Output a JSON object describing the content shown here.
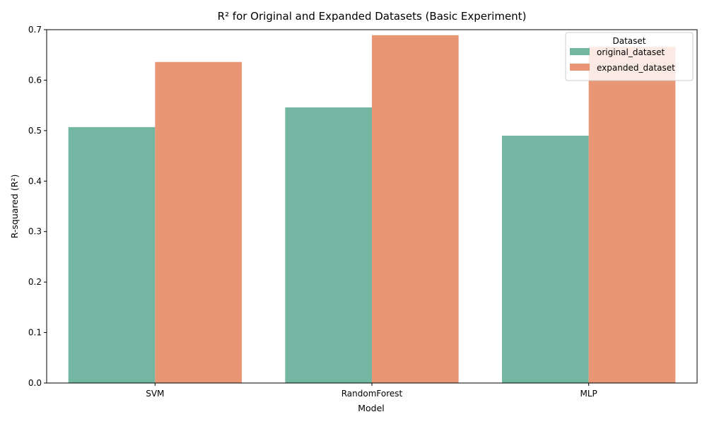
{
  "chart_data": {
    "type": "bar",
    "title": "R² for Original and Expanded Datasets (Basic Experiment)",
    "xlabel": "Model",
    "ylabel": "R-squared (R²)",
    "categories": [
      "SVM",
      "RandomForest",
      "MLP"
    ],
    "series": [
      {
        "name": "original_dataset",
        "values": [
          0.507,
          0.546,
          0.49
        ],
        "color": "#73b6a1"
      },
      {
        "name": "expanded_dataset",
        "values": [
          0.636,
          0.689,
          0.666
        ],
        "color": "#e99675"
      }
    ],
    "ylim": [
      0,
      0.7
    ],
    "yticks": [
      "0.0",
      "0.1",
      "0.2",
      "0.3",
      "0.4",
      "0.5",
      "0.6",
      "0.7"
    ],
    "legend": {
      "title": "Dataset",
      "position": "top-right"
    },
    "grid": false
  }
}
